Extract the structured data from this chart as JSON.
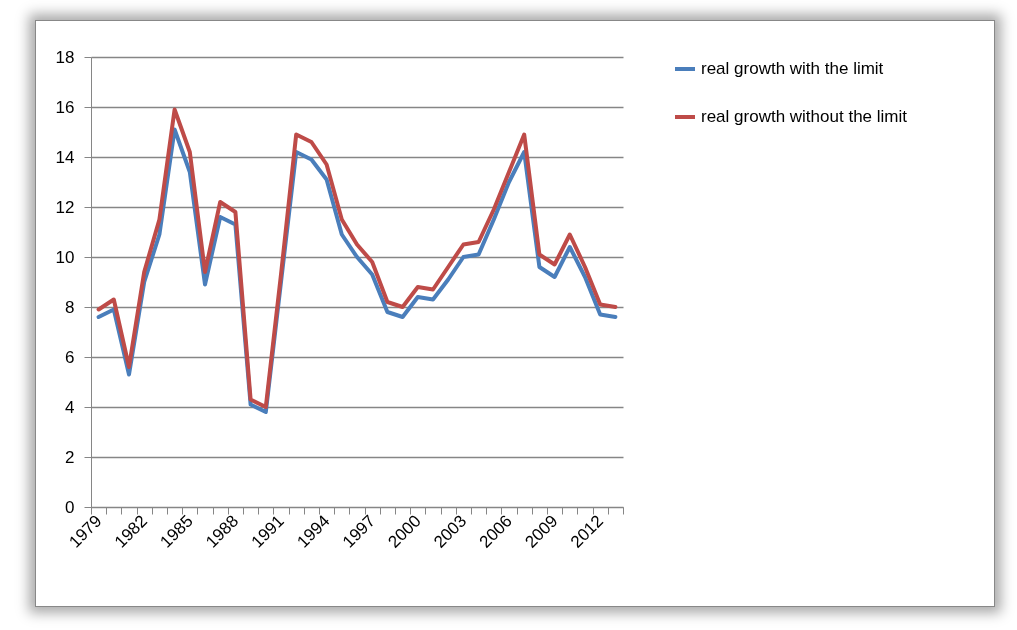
{
  "chart_data": {
    "type": "line",
    "categories": [
      "1979",
      null,
      null,
      "1982",
      null,
      null,
      "1985",
      null,
      null,
      "1988",
      null,
      null,
      "1991",
      null,
      null,
      "1994",
      null,
      null,
      "1997",
      null,
      null,
      "2000",
      null,
      null,
      "2003",
      null,
      null,
      "2006",
      null,
      null,
      "2009",
      null,
      null,
      "2012",
      null
    ],
    "series": [
      {
        "name": "real growth with the limit",
        "color": "#4a7ebb",
        "values": [
          7.6,
          7.9,
          5.3,
          9.0,
          10.9,
          15.1,
          13.4,
          8.9,
          11.6,
          11.3,
          4.1,
          3.8,
          9.0,
          14.2,
          13.9,
          13.1,
          10.9,
          10.0,
          9.3,
          7.8,
          7.6,
          8.4,
          8.3,
          9.1,
          10.0,
          10.1,
          11.5,
          13.0,
          14.2,
          9.6,
          9.2,
          10.4,
          9.2,
          7.7,
          7.6
        ]
      },
      {
        "name": "real growth without the limit",
        "color": "#be4b48",
        "values": [
          7.9,
          8.3,
          5.6,
          9.4,
          11.5,
          15.9,
          14.2,
          9.4,
          12.2,
          11.8,
          4.3,
          4.0,
          9.3,
          14.9,
          14.6,
          13.7,
          11.5,
          10.5,
          9.8,
          8.2,
          8.0,
          8.8,
          8.7,
          9.6,
          10.5,
          10.6,
          11.9,
          13.4,
          14.9,
          10.1,
          9.7,
          10.9,
          9.6,
          8.1,
          8.0
        ]
      }
    ],
    "ylim": [
      0,
      18
    ],
    "yticks": [
      0,
      2,
      4,
      6,
      8,
      10,
      12,
      14,
      16,
      18
    ],
    "grid": "y",
    "legend": "right"
  }
}
